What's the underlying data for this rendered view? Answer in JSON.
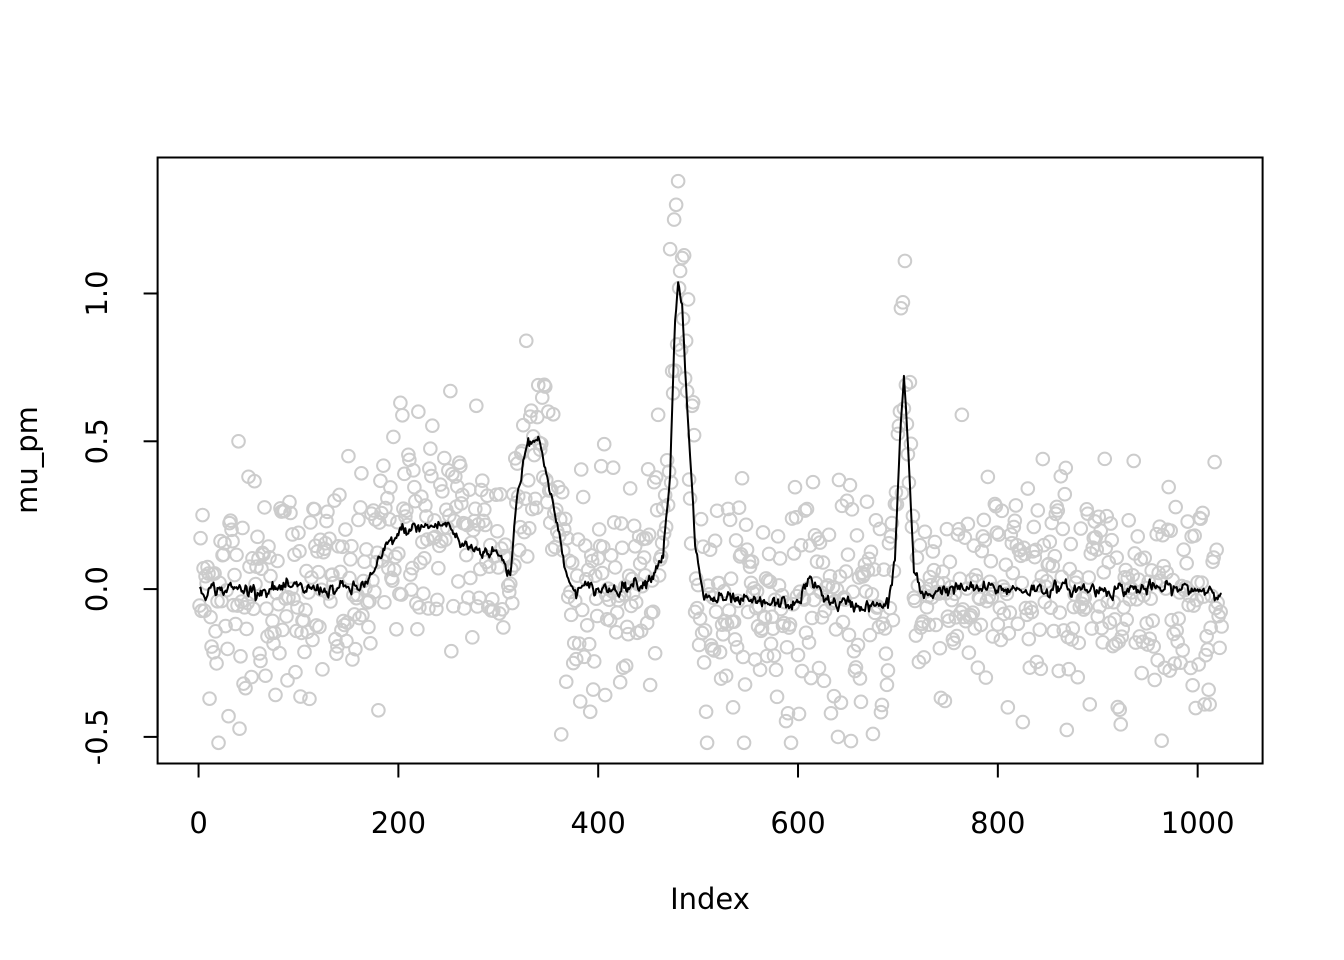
{
  "chart_data": {
    "type": "scatter",
    "title": "",
    "xlabel": "Index",
    "ylabel": "mu_pm",
    "xlim": [
      -41,
      1065
    ],
    "ylim": [
      -0.59,
      1.46
    ],
    "x_ticks": [
      0,
      200,
      400,
      600,
      800,
      1000
    ],
    "x_tick_labels": [
      "0",
      "200",
      "400",
      "600",
      "800",
      "1000"
    ],
    "y_ticks": [
      -0.5,
      0.0,
      0.5,
      1.0
    ],
    "y_tick_labels": [
      "-0.5",
      "0.0",
      "0.5",
      "1.0"
    ],
    "grid": false,
    "legend": "none",
    "n": 1024,
    "series": [
      {
        "kind": "points",
        "marker": "open-circle",
        "color": "#cccccc",
        "description": "noisy observations, one per index 1..1024",
        "noise_sd": 0.18,
        "notable_points": [
          {
            "x": 20,
            "y": -0.52
          },
          {
            "x": 30,
            "y": -0.43
          },
          {
            "x": 40,
            "y": 0.5
          },
          {
            "x": 50,
            "y": 0.38
          },
          {
            "x": 202,
            "y": 0.63
          },
          {
            "x": 220,
            "y": 0.6
          },
          {
            "x": 252,
            "y": 0.67
          },
          {
            "x": 278,
            "y": 0.62
          },
          {
            "x": 180,
            "y": -0.41
          },
          {
            "x": 328,
            "y": 0.84
          },
          {
            "x": 340,
            "y": 0.69
          },
          {
            "x": 350,
            "y": 0.6
          },
          {
            "x": 395,
            "y": -0.34
          },
          {
            "x": 472,
            "y": 1.15
          },
          {
            "x": 476,
            "y": 1.25
          },
          {
            "x": 478,
            "y": 1.3
          },
          {
            "x": 480,
            "y": 1.38
          },
          {
            "x": 484,
            "y": 1.12
          },
          {
            "x": 490,
            "y": 0.98
          },
          {
            "x": 494,
            "y": 0.62
          },
          {
            "x": 590,
            "y": -0.42
          },
          {
            "x": 633,
            "y": -0.42
          },
          {
            "x": 640,
            "y": -0.5
          },
          {
            "x": 675,
            "y": -0.49
          },
          {
            "x": 703,
            "y": 0.95
          },
          {
            "x": 705,
            "y": 0.97
          },
          {
            "x": 707,
            "y": 1.11
          },
          {
            "x": 712,
            "y": 0.7
          },
          {
            "x": 810,
            "y": -0.4
          },
          {
            "x": 825,
            "y": -0.45
          },
          {
            "x": 845,
            "y": 0.44
          },
          {
            "x": 868,
            "y": 0.41
          },
          {
            "x": 892,
            "y": -0.39
          },
          {
            "x": 1007,
            "y": -0.39
          },
          {
            "x": 1012,
            "y": -0.39
          }
        ]
      },
      {
        "kind": "line",
        "color": "#000000",
        "description": "smoothed mean estimate",
        "profile": [
          {
            "x": 1,
            "y": 0.0
          },
          {
            "x": 160,
            "y": 0.0
          },
          {
            "x": 175,
            "y": 0.05
          },
          {
            "x": 190,
            "y": 0.15
          },
          {
            "x": 205,
            "y": 0.2
          },
          {
            "x": 250,
            "y": 0.22
          },
          {
            "x": 262,
            "y": 0.15
          },
          {
            "x": 300,
            "y": 0.12
          },
          {
            "x": 312,
            "y": 0.05
          },
          {
            "x": 318,
            "y": 0.3
          },
          {
            "x": 330,
            "y": 0.52
          },
          {
            "x": 340,
            "y": 0.5
          },
          {
            "x": 350,
            "y": 0.38
          },
          {
            "x": 362,
            "y": 0.15
          },
          {
            "x": 372,
            "y": 0.0
          },
          {
            "x": 410,
            "y": 0.0
          },
          {
            "x": 450,
            "y": 0.03
          },
          {
            "x": 465,
            "y": 0.12
          },
          {
            "x": 472,
            "y": 0.4
          },
          {
            "x": 477,
            "y": 0.9
          },
          {
            "x": 480,
            "y": 1.02
          },
          {
            "x": 484,
            "y": 0.95
          },
          {
            "x": 490,
            "y": 0.55
          },
          {
            "x": 497,
            "y": 0.15
          },
          {
            "x": 506,
            "y": -0.03
          },
          {
            "x": 560,
            "y": -0.05
          },
          {
            "x": 600,
            "y": -0.05
          },
          {
            "x": 610,
            "y": 0.03
          },
          {
            "x": 620,
            "y": 0.0
          },
          {
            "x": 635,
            "y": -0.05
          },
          {
            "x": 690,
            "y": -0.06
          },
          {
            "x": 697,
            "y": 0.1
          },
          {
            "x": 702,
            "y": 0.5
          },
          {
            "x": 706,
            "y": 0.72
          },
          {
            "x": 710,
            "y": 0.5
          },
          {
            "x": 716,
            "y": 0.05
          },
          {
            "x": 725,
            "y": -0.03
          },
          {
            "x": 740,
            "y": 0.0
          },
          {
            "x": 1024,
            "y": 0.0
          }
        ]
      }
    ]
  }
}
